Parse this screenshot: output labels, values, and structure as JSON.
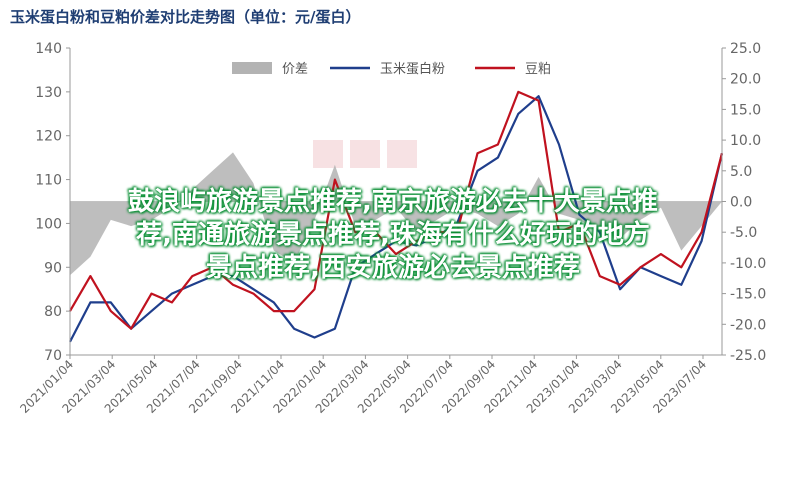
{
  "title": "玉米蛋白粉和豆粕价差对比走势图（单位：元/蛋白）",
  "overlay_text": [
    "鼓浪屿旅游景点推荐,南京旅游必去十大景点推",
    "荐,南通旅游景点推荐,珠海有什么好玩的地方",
    "景点推荐,西安旅游必去景点推荐"
  ],
  "colors": {
    "spread": "#b3b3b3",
    "corn": "#1f3e8c",
    "soy": "#c0121f"
  },
  "chart_data": {
    "type": "line",
    "x_tick_labels": [
      "2021/01/04",
      "2021/03/04",
      "2021/05/04",
      "2021/07/04",
      "2021/09/04",
      "2021/11/04",
      "2022/01/04",
      "2022/03/04",
      "2022/05/04",
      "2022/07/04",
      "2022/09/04",
      "2022/11/04",
      "2023/01/04",
      "2023/03/04",
      "2023/05/04",
      "2023/07/04"
    ],
    "ylim_left": [
      70,
      140
    ],
    "yticks_left": [
      "70",
      "80",
      "90",
      "100",
      "110",
      "120",
      "130",
      "140"
    ],
    "ylim_right": [
      -25,
      25
    ],
    "yticks_right": [
      "-25.0",
      "-20.0",
      "-15.0",
      "-10.0",
      "-5.0",
      "0.0",
      "5.0",
      "10.0",
      "15.0",
      "20.0",
      "25.0"
    ],
    "legend": [
      "价差",
      "玉米蛋白粉",
      "豆粕"
    ],
    "legend_position": "top",
    "x": [
      "2021-01",
      "2021-02",
      "2021-03",
      "2021-04",
      "2021-05",
      "2021-06",
      "2021-07",
      "2021-08",
      "2021-09",
      "2021-10",
      "2021-11",
      "2021-12",
      "2022-01",
      "2022-02",
      "2022-03",
      "2022-04",
      "2022-05",
      "2022-06",
      "2022-07",
      "2022-08",
      "2022-09",
      "2022-10",
      "2022-11",
      "2022-12",
      "2023-01",
      "2023-02",
      "2023-03",
      "2023-04",
      "2023-05",
      "2023-06",
      "2023-07",
      "2023-08",
      "2023-09"
    ],
    "series": [
      {
        "name": "价差",
        "axis": "right",
        "type": "area",
        "values": [
          -12,
          -9,
          -3,
          -4,
          -3,
          -1,
          2,
          5,
          8,
          3,
          -8,
          -10,
          -3,
          6,
          -4,
          -3,
          -1,
          -5,
          -3,
          -1,
          -2,
          -4,
          -2,
          4,
          -2,
          -3,
          -5,
          -6,
          -3,
          -1,
          -8,
          -4,
          0
        ]
      },
      {
        "name": "玉米蛋白粉",
        "axis": "left",
        "type": "line",
        "values": [
          73,
          82,
          82,
          76,
          80,
          84,
          86,
          88,
          88,
          85,
          82,
          76,
          74,
          76,
          90,
          93,
          96,
          95,
          97,
          100,
          112,
          115,
          125,
          129,
          118,
          102,
          98,
          85,
          90,
          88,
          86,
          96,
          116
        ]
      },
      {
        "name": "豆粕",
        "axis": "left",
        "type": "line",
        "values": [
          80,
          88,
          80,
          76,
          84,
          82,
          88,
          90,
          86,
          84,
          80,
          80,
          85,
          110,
          98,
          98,
          93,
          96,
          98,
          98,
          116,
          118,
          130,
          128,
          98,
          100,
          88,
          86,
          90,
          93,
          90,
          98,
          116
        ]
      }
    ]
  }
}
